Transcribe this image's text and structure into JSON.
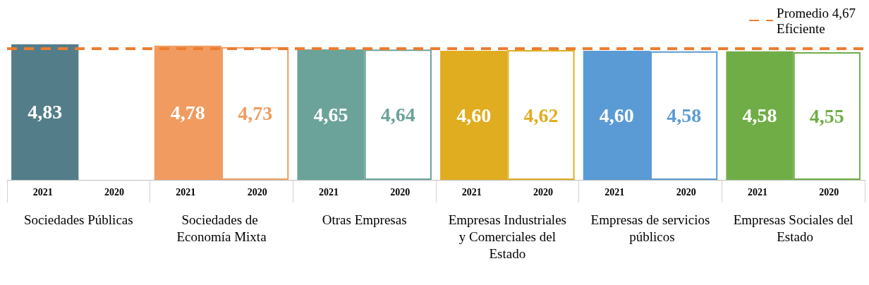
{
  "chart_data": {
    "type": "bar",
    "categories": [
      "Sociedades Públicas",
      "Sociedades de Economía Mixta",
      "Otras Empresas",
      "Empresas Industriales y Comerciales del Estado",
      "Empresas de servicios públicos",
      "Empresas Sociales del Estado"
    ],
    "series": [
      {
        "name": "2021",
        "colors": [
          "#537d89",
          "#f19b60",
          "#6ba39a",
          "#e0ad21",
          "#5b9bd5",
          "#70ad47"
        ],
        "values": [
          4.83,
          4.78,
          4.65,
          4.6,
          4.6,
          4.58
        ],
        "value_labels": [
          "4,83",
          "4,78",
          "4,65",
          "4,60",
          "4,60",
          "4,58"
        ]
      },
      {
        "name": "2020",
        "colors": [
          null,
          "#f19b60",
          "#6ba39a",
          "#e0ad21",
          "#5b9bd5",
          "#70ad47"
        ],
        "values": [
          null,
          4.73,
          4.64,
          4.62,
          4.58,
          4.55
        ],
        "value_labels": [
          null,
          "4,73",
          "4,64",
          "4,62",
          "4,58",
          "4,55"
        ]
      }
    ],
    "tick_labels": "x",
    "legend": "top right",
    "ref_lines": [
      {
        "axis": "y",
        "value": 4.67,
        "label": "Promedio 4,67\nEficiente",
        "color": "#ed7d31",
        "line_style": "dashed"
      }
    ]
  }
}
